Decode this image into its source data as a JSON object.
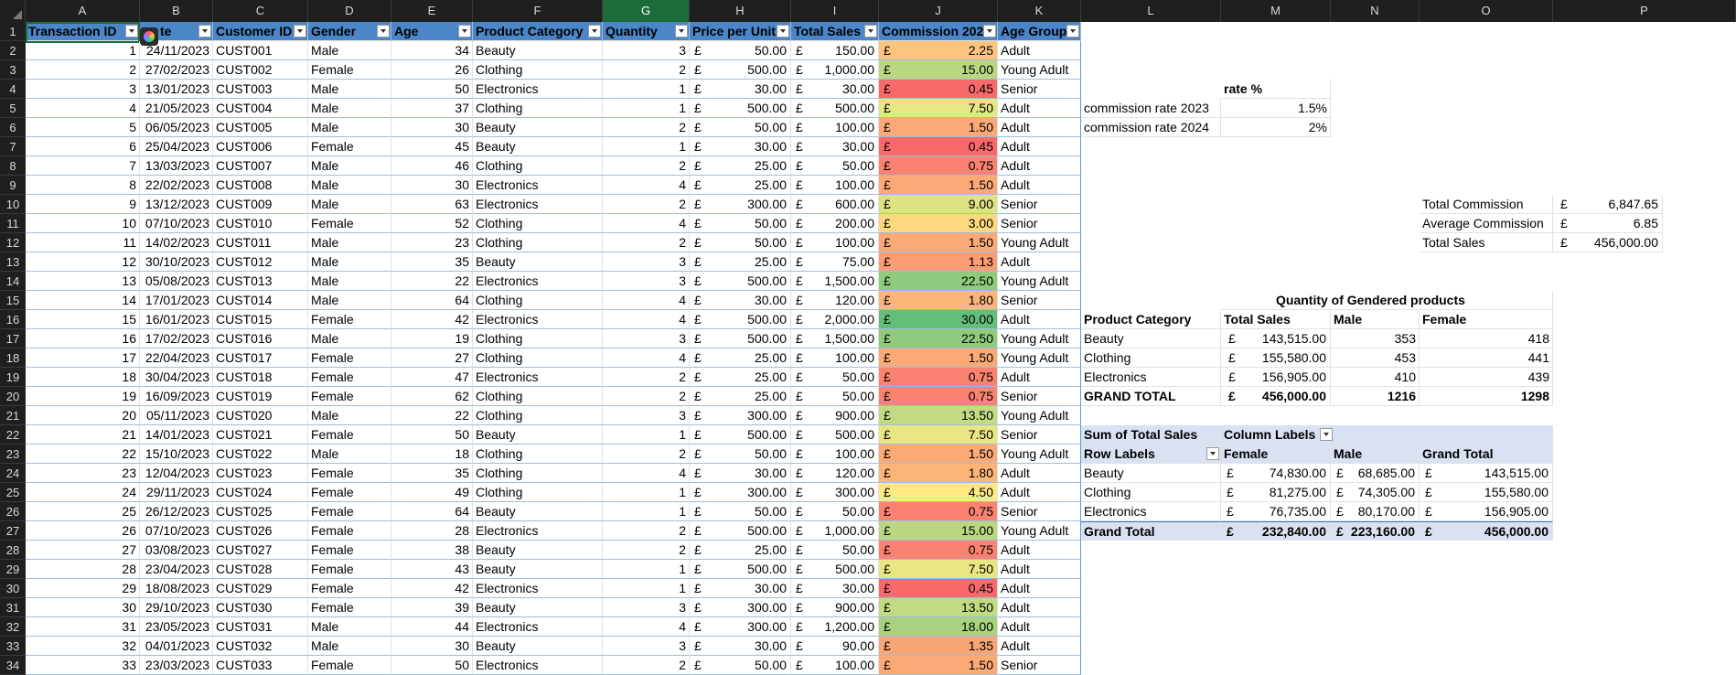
{
  "columns": {
    "letters": [
      "A",
      "B",
      "C",
      "D",
      "E",
      "F",
      "G",
      "H",
      "I",
      "J",
      "K",
      "L",
      "M",
      "N",
      "O",
      "P"
    ],
    "selected": "G"
  },
  "rows": {
    "numbers": [
      "1",
      "2",
      "3",
      "4",
      "5",
      "6",
      "7",
      "8",
      "9",
      "10",
      "11",
      "12",
      "13",
      "14",
      "15",
      "16",
      "17",
      "18",
      "19",
      "20",
      "21",
      "22",
      "23",
      "24",
      "25",
      "26",
      "27",
      "28",
      "29",
      "30",
      "31",
      "32",
      "33",
      "34"
    ]
  },
  "table": {
    "headers": [
      "Transaction ID",
      "Date",
      "Customer ID",
      "Gender",
      "Age",
      "Product Category",
      "Quantity",
      "Price per Unit",
      "Total Sales",
      "Commission 202",
      "Age Group"
    ],
    "header_visible_b": "te",
    "currency": "£",
    "rows": [
      [
        "1",
        "24/11/2023",
        "CUST001",
        "Male",
        "34",
        "Beauty",
        "3",
        "50.00",
        "150.00",
        "2.25",
        "Adult"
      ],
      [
        "2",
        "27/02/2023",
        "CUST002",
        "Female",
        "26",
        "Clothing",
        "2",
        "500.00",
        "1,000.00",
        "15.00",
        "Young Adult"
      ],
      [
        "3",
        "13/01/2023",
        "CUST003",
        "Male",
        "50",
        "Electronics",
        "1",
        "30.00",
        "30.00",
        "0.45",
        "Senior"
      ],
      [
        "4",
        "21/05/2023",
        "CUST004",
        "Male",
        "37",
        "Clothing",
        "1",
        "500.00",
        "500.00",
        "7.50",
        "Adult"
      ],
      [
        "5",
        "06/05/2023",
        "CUST005",
        "Male",
        "30",
        "Beauty",
        "2",
        "50.00",
        "100.00",
        "1.50",
        "Adult"
      ],
      [
        "6",
        "25/04/2023",
        "CUST006",
        "Female",
        "45",
        "Beauty",
        "1",
        "30.00",
        "30.00",
        "0.45",
        "Adult"
      ],
      [
        "7",
        "13/03/2023",
        "CUST007",
        "Male",
        "46",
        "Clothing",
        "2",
        "25.00",
        "50.00",
        "0.75",
        "Adult"
      ],
      [
        "8",
        "22/02/2023",
        "CUST008",
        "Male",
        "30",
        "Electronics",
        "4",
        "25.00",
        "100.00",
        "1.50",
        "Adult"
      ],
      [
        "9",
        "13/12/2023",
        "CUST009",
        "Male",
        "63",
        "Electronics",
        "2",
        "300.00",
        "600.00",
        "9.00",
        "Senior"
      ],
      [
        "10",
        "07/10/2023",
        "CUST010",
        "Female",
        "52",
        "Clothing",
        "4",
        "50.00",
        "200.00",
        "3.00",
        "Senior"
      ],
      [
        "11",
        "14/02/2023",
        "CUST011",
        "Male",
        "23",
        "Clothing",
        "2",
        "50.00",
        "100.00",
        "1.50",
        "Young Adult"
      ],
      [
        "12",
        "30/10/2023",
        "CUST012",
        "Male",
        "35",
        "Beauty",
        "3",
        "25.00",
        "75.00",
        "1.13",
        "Adult"
      ],
      [
        "13",
        "05/08/2023",
        "CUST013",
        "Male",
        "22",
        "Electronics",
        "3",
        "500.00",
        "1,500.00",
        "22.50",
        "Young Adult"
      ],
      [
        "14",
        "17/01/2023",
        "CUST014",
        "Male",
        "64",
        "Clothing",
        "4",
        "30.00",
        "120.00",
        "1.80",
        "Senior"
      ],
      [
        "15",
        "16/01/2023",
        "CUST015",
        "Female",
        "42",
        "Electronics",
        "4",
        "500.00",
        "2,000.00",
        "30.00",
        "Adult"
      ],
      [
        "16",
        "17/02/2023",
        "CUST016",
        "Male",
        "19",
        "Clothing",
        "3",
        "500.00",
        "1,500.00",
        "22.50",
        "Young Adult"
      ],
      [
        "17",
        "22/04/2023",
        "CUST017",
        "Female",
        "27",
        "Clothing",
        "4",
        "25.00",
        "100.00",
        "1.50",
        "Young Adult"
      ],
      [
        "18",
        "30/04/2023",
        "CUST018",
        "Female",
        "47",
        "Electronics",
        "2",
        "25.00",
        "50.00",
        "0.75",
        "Adult"
      ],
      [
        "19",
        "16/09/2023",
        "CUST019",
        "Female",
        "62",
        "Clothing",
        "2",
        "25.00",
        "50.00",
        "0.75",
        "Senior"
      ],
      [
        "20",
        "05/11/2023",
        "CUST020",
        "Male",
        "22",
        "Clothing",
        "3",
        "300.00",
        "900.00",
        "13.50",
        "Young Adult"
      ],
      [
        "21",
        "14/01/2023",
        "CUST021",
        "Female",
        "50",
        "Beauty",
        "1",
        "500.00",
        "500.00",
        "7.50",
        "Senior"
      ],
      [
        "22",
        "15/10/2023",
        "CUST022",
        "Male",
        "18",
        "Clothing",
        "2",
        "50.00",
        "100.00",
        "1.50",
        "Young Adult"
      ],
      [
        "23",
        "12/04/2023",
        "CUST023",
        "Female",
        "35",
        "Clothing",
        "4",
        "30.00",
        "120.00",
        "1.80",
        "Adult"
      ],
      [
        "24",
        "29/11/2023",
        "CUST024",
        "Female",
        "49",
        "Clothing",
        "1",
        "300.00",
        "300.00",
        "4.50",
        "Adult"
      ],
      [
        "25",
        "26/12/2023",
        "CUST025",
        "Female",
        "64",
        "Beauty",
        "1",
        "50.00",
        "50.00",
        "0.75",
        "Senior"
      ],
      [
        "26",
        "07/10/2023",
        "CUST026",
        "Female",
        "28",
        "Electronics",
        "2",
        "500.00",
        "1,000.00",
        "15.00",
        "Young Adult"
      ],
      [
        "27",
        "03/08/2023",
        "CUST027",
        "Female",
        "38",
        "Beauty",
        "2",
        "25.00",
        "50.00",
        "0.75",
        "Adult"
      ],
      [
        "28",
        "23/04/2023",
        "CUST028",
        "Female",
        "43",
        "Beauty",
        "1",
        "500.00",
        "500.00",
        "7.50",
        "Adult"
      ],
      [
        "29",
        "18/08/2023",
        "CUST029",
        "Female",
        "42",
        "Electronics",
        "1",
        "30.00",
        "30.00",
        "0.45",
        "Adult"
      ],
      [
        "30",
        "29/10/2023",
        "CUST030",
        "Female",
        "39",
        "Beauty",
        "3",
        "300.00",
        "900.00",
        "13.50",
        "Adult"
      ],
      [
        "31",
        "23/05/2023",
        "CUST031",
        "Male",
        "44",
        "Electronics",
        "4",
        "300.00",
        "1,200.00",
        "18.00",
        "Adult"
      ],
      [
        "32",
        "04/01/2023",
        "CUST032",
        "Male",
        "30",
        "Beauty",
        "3",
        "30.00",
        "90.00",
        "1.35",
        "Adult"
      ],
      [
        "33",
        "23/03/2023",
        "CUST033",
        "Female",
        "50",
        "Electronics",
        "2",
        "50.00",
        "100.00",
        "1.50",
        "Senior"
      ]
    ],
    "commission_colors": {
      "0.45": "#f8696b",
      "0.75": "#f98370",
      "1.13": "#fa9c74",
      "1.35": "#faa575",
      "1.50": "#fbaa77",
      "1.80": "#fcb579",
      "2.25": "#fdc47d",
      "3.00": "#fed880",
      "4.50": "#fee983",
      "7.50": "#e8e583",
      "9.00": "#dde283",
      "13.50": "#c2da81",
      "15.00": "#b9d780",
      "18.00": "#a8d27f",
      "22.50": "#8fca7d",
      "30.00": "#63be7b"
    }
  },
  "rates": {
    "header": "rate %",
    "rows": [
      {
        "label": "commission rate 2023",
        "value": "1.5%"
      },
      {
        "label": "commission rate 2024",
        "value": "2%"
      }
    ]
  },
  "summary": {
    "rows": [
      {
        "label": "Total Commission",
        "currency": "£",
        "value": "6,847.65"
      },
      {
        "label": "Average Commission",
        "currency": "£",
        "value": "6.85"
      },
      {
        "label": "Total Sales",
        "currency": "£",
        "value": "456,000.00"
      }
    ]
  },
  "gendered": {
    "title": "Quantity of Gendered products",
    "headers": [
      "Product Category",
      "Total Sales",
      "Male",
      "Female"
    ],
    "rows": [
      {
        "cat": "Beauty",
        "sales": "143,515.00",
        "male": "353",
        "female": "418"
      },
      {
        "cat": "Clothing",
        "sales": "155,580.00",
        "male": "453",
        "female": "441"
      },
      {
        "cat": "Electronics",
        "sales": "156,905.00",
        "male": "410",
        "female": "439"
      }
    ],
    "total": {
      "cat": "GRAND TOTAL",
      "sales": "456,000.00",
      "male": "1216",
      "female": "1298"
    }
  },
  "pivot": {
    "value_label": "Sum of Total Sales",
    "col_label": "Column Labels",
    "row_label": "Row Labels",
    "col_headers": [
      "Female",
      "Male",
      "Grand Total"
    ],
    "rows": [
      {
        "cat": "Beauty",
        "female": "74,830.00",
        "male": "68,685.00",
        "total": "143,515.00"
      },
      {
        "cat": "Clothing",
        "female": "81,275.00",
        "male": "74,305.00",
        "total": "155,580.00"
      },
      {
        "cat": "Electronics",
        "female": "76,735.00",
        "male": "80,170.00",
        "total": "156,905.00"
      }
    ],
    "grand": {
      "cat": "Grand Total",
      "female": "232,840.00",
      "male": "223,160.00",
      "total": "456,000.00"
    }
  }
}
